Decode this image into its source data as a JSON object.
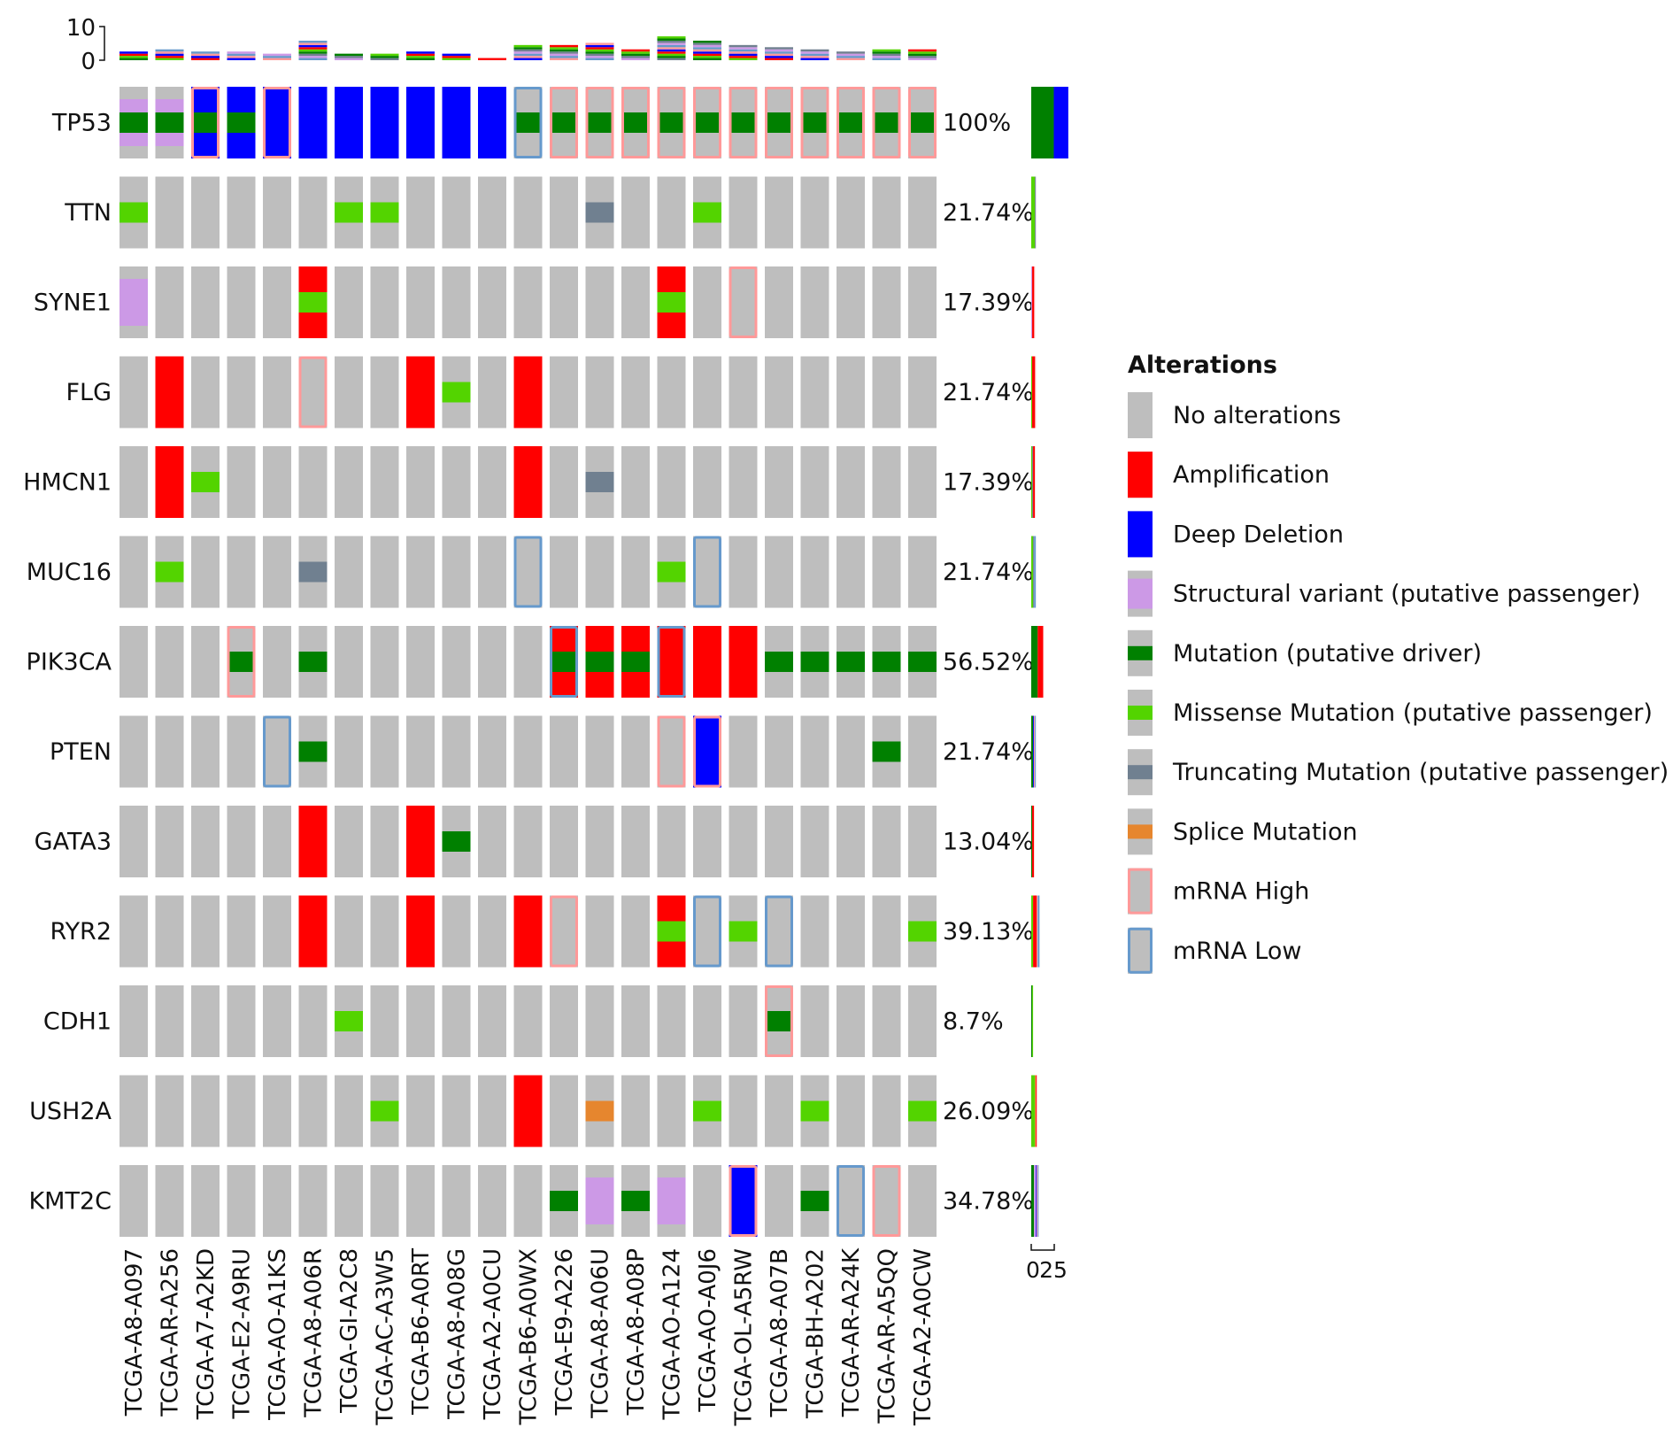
{
  "chart_data": {
    "type": "oncoprint",
    "top_axis": {
      "ticks": [
        "10",
        "0"
      ]
    },
    "right_axis": {
      "ticks": [
        "0",
        "25"
      ]
    },
    "legend": {
      "title": "Alterations",
      "items": [
        {
          "key": "none",
          "label": "No alterations",
          "color": "#BEBEBE"
        },
        {
          "key": "amp",
          "label": "Amplification",
          "color": "#FF0000"
        },
        {
          "key": "del",
          "label": "Deep Deletion",
          "color": "#0000FF"
        },
        {
          "key": "sv",
          "label": "Structural variant (putative passenger)",
          "color": "#CC99E6"
        },
        {
          "key": "drv",
          "label": "Mutation (putative driver)",
          "color": "#008000"
        },
        {
          "key": "mis",
          "label": "Missense Mutation (putative passenger)",
          "color": "#53D400"
        },
        {
          "key": "trunc",
          "label": "Truncating Mutation (putative passenger)",
          "color": "#708090"
        },
        {
          "key": "splice",
          "label": "Splice Mutation",
          "color": "#E6862E"
        },
        {
          "key": "mrnaHigh",
          "label": "mRNA High",
          "color": "#FF9999"
        },
        {
          "key": "mrnaLow",
          "label": "mRNA Low",
          "color": "#6699CC"
        }
      ]
    },
    "samples": [
      "TCGA-A8-A097",
      "TCGA-AR-A256",
      "TCGA-A7-A2KD",
      "TCGA-E2-A9RU",
      "TCGA-AO-A1KS",
      "TCGA-A8-A06R",
      "TCGA-GI-A2C8",
      "TCGA-AC-A3W5",
      "TCGA-B6-A0RT",
      "TCGA-A8-A08G",
      "TCGA-A2-A0CU",
      "TCGA-B6-A0WX",
      "TCGA-E9-A226",
      "TCGA-A8-A06U",
      "TCGA-A8-A08P",
      "TCGA-AO-A124",
      "TCGA-AO-A0J6",
      "TCGA-OL-A5RW",
      "TCGA-A8-A07B",
      "TCGA-BH-A202",
      "TCGA-AR-A24K",
      "TCGA-AR-A5QQ",
      "TCGA-A2-A0CW"
    ],
    "genes": [
      "TP53",
      "TTN",
      "SYNE1",
      "FLG",
      "HMCN1",
      "MUC16",
      "PIK3CA",
      "PTEN",
      "GATA3",
      "RYR2",
      "CDH1",
      "USH2A",
      "KMT2C"
    ],
    "percentages": [
      "100%",
      "21.74%",
      "17.39%",
      "21.74%",
      "17.39%",
      "21.74%",
      "56.52%",
      "21.74%",
      "13.04%",
      "39.13%",
      "8.7%",
      "26.09%",
      "34.78%"
    ],
    "right_bar_counts": [
      23,
      5,
      4,
      5,
      4,
      5,
      13,
      5,
      3,
      9,
      2,
      6,
      8
    ],
    "top_bar_counts": [
      4,
      5,
      4,
      4,
      3,
      9,
      3,
      3,
      4,
      3,
      1,
      7,
      7,
      8,
      5,
      11,
      9,
      7,
      6,
      5,
      4,
      5,
      5
    ],
    "cells": {
      "TP53": [
        {
          "fill": "sv",
          "mut": "drv"
        },
        {
          "fill": "sv",
          "mut": "drv"
        },
        {
          "fill": "del",
          "mut": "drv",
          "mrna": "mrnaHigh"
        },
        {
          "fill": "del",
          "mut": "drv"
        },
        {
          "fill": "del",
          "mrna": "mrnaHigh"
        },
        {
          "fill": "del"
        },
        {
          "fill": "del"
        },
        {
          "fill": "del"
        },
        {
          "fill": "del"
        },
        {
          "fill": "del"
        },
        {
          "fill": "del"
        },
        {
          "mut": "drv",
          "mrna": "mrnaLow"
        },
        {
          "mut": "drv",
          "mrna": "mrnaHigh"
        },
        {
          "mut": "drv",
          "mrna": "mrnaHigh"
        },
        {
          "mut": "drv",
          "mrna": "mrnaHigh"
        },
        {
          "mut": "drv",
          "mrna": "mrnaHigh"
        },
        {
          "mut": "drv",
          "mrna": "mrnaHigh"
        },
        {
          "mut": "drv",
          "mrna": "mrnaHigh"
        },
        {
          "mut": "drv",
          "mrna": "mrnaHigh"
        },
        {
          "mut": "drv",
          "mrna": "mrnaHigh"
        },
        {
          "mut": "drv",
          "mrna": "mrnaHigh"
        },
        {
          "mut": "drv",
          "mrna": "mrnaHigh"
        },
        {
          "mut": "drv",
          "mrna": "mrnaHigh"
        }
      ],
      "TTN": [
        {
          "mut": "mis"
        },
        {},
        {},
        {},
        {},
        {},
        {
          "mut": "mis"
        },
        {
          "mut": "mis"
        },
        {},
        {},
        {},
        {},
        {},
        {
          "mut": "trunc"
        },
        {},
        {},
        {
          "mut": "mis"
        },
        {},
        {},
        {},
        {},
        {},
        {}
      ],
      "SYNE1": [
        {
          "fill": "sv"
        },
        {},
        {},
        {},
        {},
        {
          "fill": "amp",
          "mut": "mis"
        },
        {},
        {},
        {},
        {},
        {},
        {},
        {},
        {},
        {},
        {
          "fill": "amp",
          "mut": "mis"
        },
        {},
        {
          "mrna": "mrnaHigh"
        },
        {},
        {},
        {},
        {},
        {}
      ],
      "FLG": [
        {},
        {
          "fill": "amp"
        },
        {},
        {},
        {},
        {
          "mrna": "mrnaHigh"
        },
        {},
        {},
        {
          "fill": "amp"
        },
        {
          "mut": "mis"
        },
        {},
        {
          "fill": "amp"
        },
        {},
        {},
        {},
        {},
        {},
        {},
        {},
        {},
        {},
        {},
        {}
      ],
      "HMCN1": [
        {},
        {
          "fill": "amp"
        },
        {
          "mut": "mis"
        },
        {},
        {},
        {},
        {},
        {},
        {},
        {},
        {},
        {
          "fill": "amp"
        },
        {},
        {
          "mut": "trunc"
        },
        {},
        {},
        {},
        {},
        {},
        {},
        {},
        {},
        {}
      ],
      "MUC16": [
        {},
        {
          "mut": "mis"
        },
        {},
        {},
        {},
        {
          "mut": "trunc"
        },
        {},
        {},
        {},
        {},
        {},
        {
          "mrna": "mrnaLow"
        },
        {},
        {},
        {},
        {
          "mut": "mis"
        },
        {
          "mrna": "mrnaLow"
        },
        {},
        {},
        {},
        {},
        {},
        {}
      ],
      "PIK3CA": [
        {},
        {},
        {},
        {
          "mut": "drv",
          "mrna": "mrnaHigh"
        },
        {},
        {
          "mut": "drv"
        },
        {},
        {},
        {},
        {},
        {},
        {},
        {
          "fill": "amp",
          "mut": "drv",
          "mrna": "mrnaLow"
        },
        {
          "fill": "amp",
          "mut": "drv"
        },
        {
          "fill": "amp",
          "mut": "drv"
        },
        {
          "fill": "amp",
          "mrna": "mrnaLow"
        },
        {
          "fill": "amp"
        },
        {
          "fill": "amp"
        },
        {
          "mut": "drv"
        },
        {
          "mut": "drv"
        },
        {
          "mut": "drv"
        },
        {
          "mut": "drv"
        },
        {
          "mut": "drv"
        }
      ],
      "PTEN": [
        {},
        {},
        {},
        {},
        {
          "mrna": "mrnaLow"
        },
        {
          "mut": "drv"
        },
        {},
        {},
        {},
        {},
        {},
        {},
        {},
        {},
        {},
        {
          "mrna": "mrnaHigh"
        },
        {
          "fill": "del",
          "mrna": "mrnaHigh"
        },
        {},
        {},
        {},
        {},
        {
          "mut": "drv"
        },
        {}
      ],
      "GATA3": [
        {},
        {},
        {},
        {},
        {},
        {
          "fill": "amp"
        },
        {},
        {},
        {
          "fill": "amp"
        },
        {
          "mut": "drv"
        },
        {},
        {},
        {},
        {},
        {},
        {},
        {},
        {},
        {},
        {},
        {},
        {},
        {}
      ],
      "RYR2": [
        {},
        {},
        {},
        {},
        {},
        {
          "fill": "amp"
        },
        {},
        {},
        {
          "fill": "amp"
        },
        {},
        {},
        {
          "fill": "amp"
        },
        {
          "mrna": "mrnaHigh"
        },
        {},
        {},
        {
          "fill": "amp",
          "mut": "mis"
        },
        {
          "mrna": "mrnaLow"
        },
        {
          "mut": "mis"
        },
        {
          "mrna": "mrnaLow"
        },
        {},
        {},
        {},
        {
          "mut": "mis"
        }
      ],
      "CDH1": [
        {},
        {},
        {},
        {},
        {},
        {},
        {
          "mut": "mis"
        },
        {},
        {},
        {},
        {},
        {},
        {},
        {},
        {},
        {},
        {},
        {},
        {
          "mut": "drv",
          "mrna": "mrnaHigh"
        },
        {},
        {},
        {},
        {}
      ],
      "USH2A": [
        {},
        {},
        {},
        {},
        {},
        {},
        {},
        {
          "mut": "mis"
        },
        {},
        {},
        {},
        {
          "fill": "amp"
        },
        {},
        {
          "mut": "splice"
        },
        {},
        {},
        {
          "mut": "mis"
        },
        {},
        {},
        {
          "mut": "mis"
        },
        {},
        {},
        {
          "mut": "mis"
        }
      ],
      "KMT2C": [
        {},
        {},
        {},
        {},
        {},
        {},
        {},
        {},
        {},
        {},
        {},
        {},
        {
          "mut": "drv"
        },
        {
          "fill": "sv"
        },
        {
          "mut": "drv"
        },
        {
          "fill": "sv"
        },
        {},
        {
          "fill": "del",
          "mrna": "mrnaHigh"
        },
        {},
        {
          "mut": "drv"
        },
        {
          "mrna": "mrnaLow"
        },
        {
          "mrna": "mrnaHigh"
        },
        {}
      ]
    }
  }
}
